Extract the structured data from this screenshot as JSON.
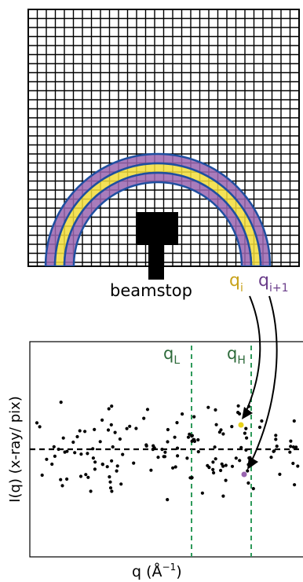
{
  "detector": {
    "beamstop_label": "beamstop",
    "ring_labels": {
      "qi": {
        "base": "q",
        "sub": "i"
      },
      "qi1": {
        "base": "q",
        "sub": "i+1"
      }
    }
  },
  "plot": {
    "xlabel": {
      "base": "q (Å",
      "sup": "−1",
      "tail": ")"
    },
    "ylabel": "I(q) (x-ray/ pix)",
    "lines": {
      "qL": {
        "base": "q",
        "sub": "L"
      },
      "qH": {
        "base": "q",
        "sub": "H"
      }
    }
  },
  "colors": {
    "grid": "#000000",
    "ring_outline": "#1f4fa0",
    "ring_purple": "#9a65b0",
    "ring_yellow": "#f2dd3a",
    "qi_text": "#c8a21a",
    "qi1_text": "#6a3d8a",
    "dashed_green": "#2e9a5a",
    "qlabel_text": "#2d6a3a"
  }
}
